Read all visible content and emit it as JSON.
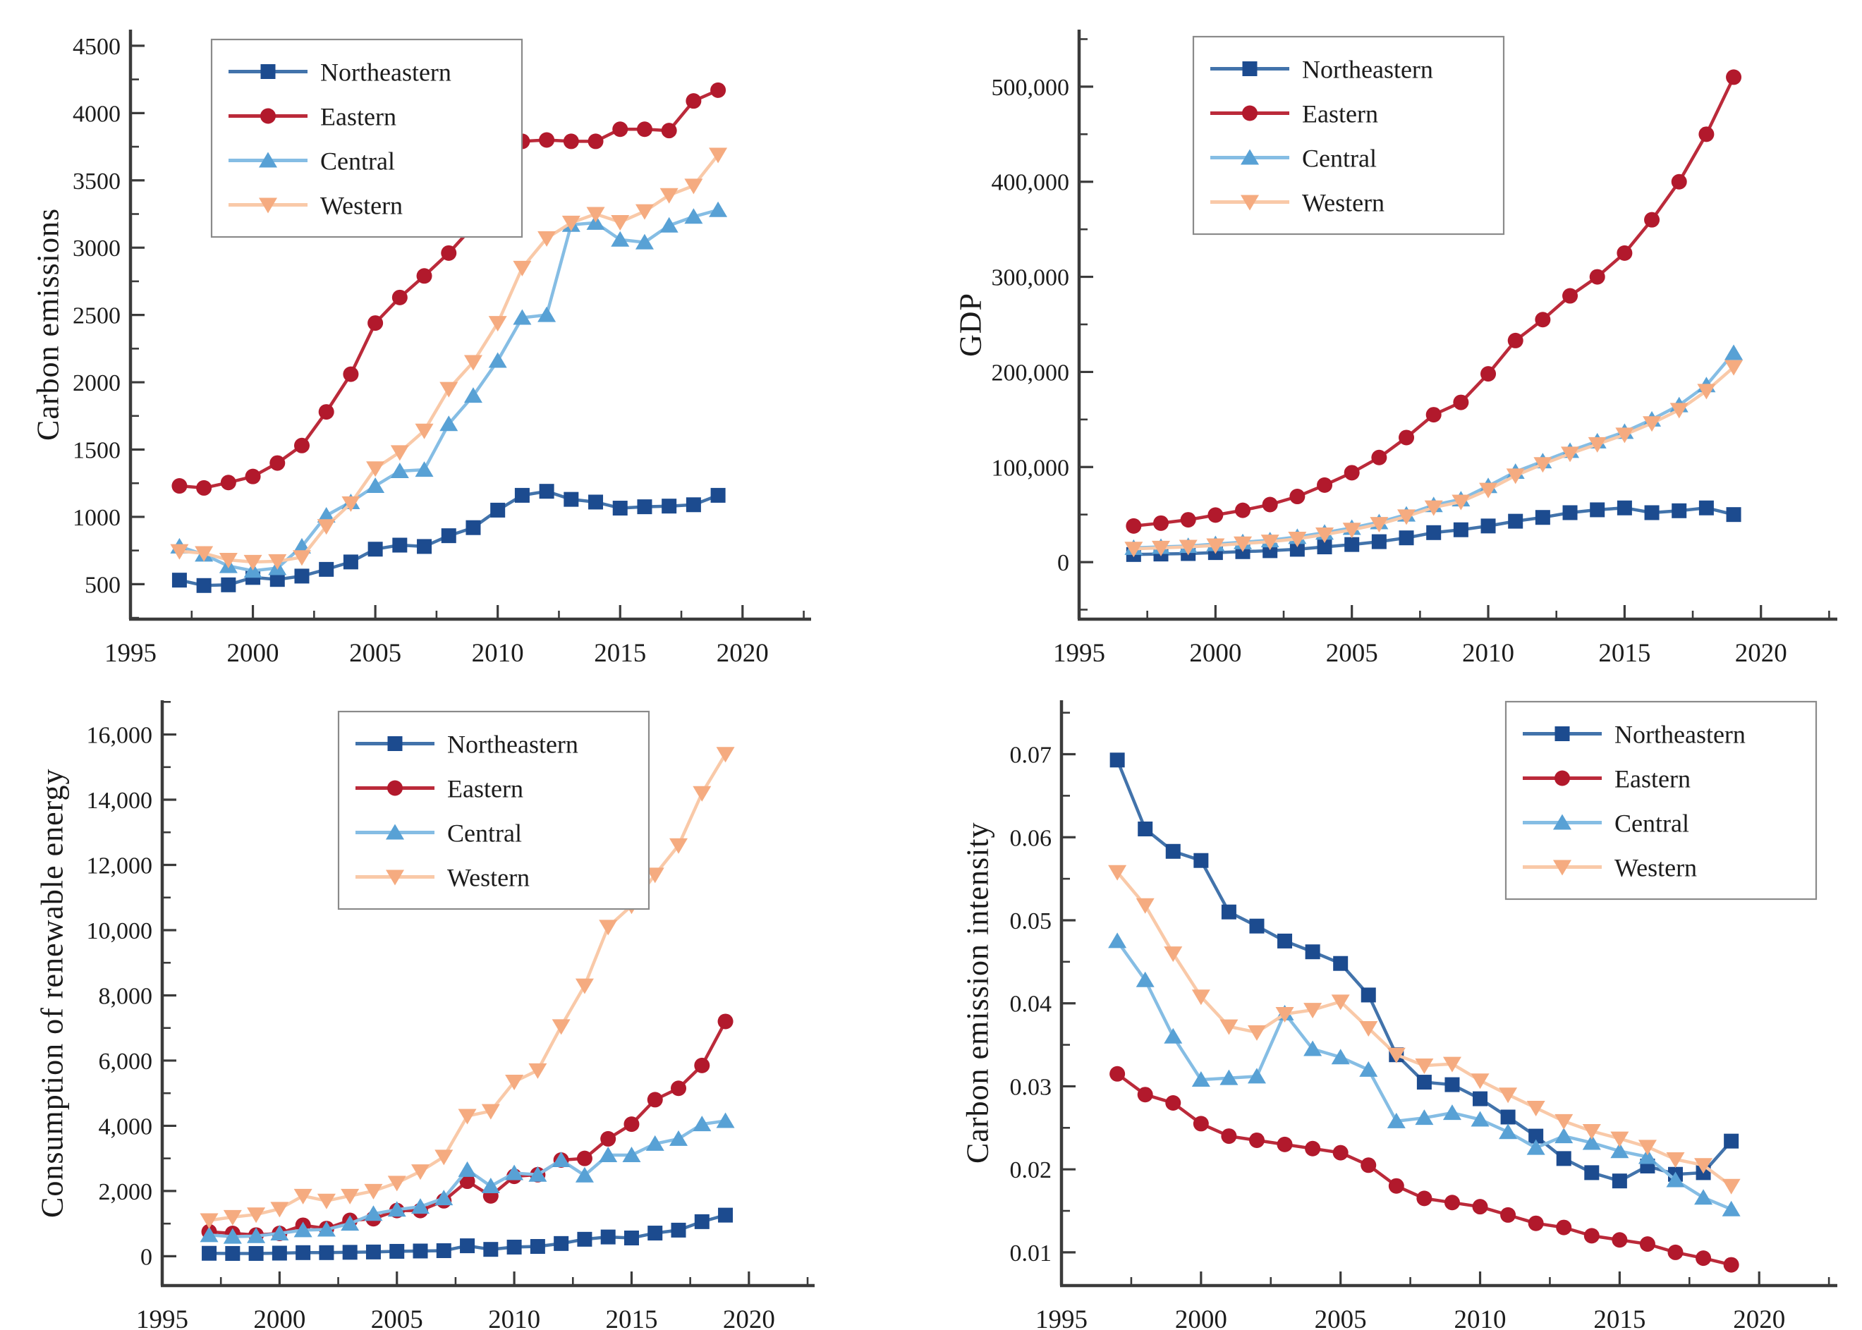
{
  "chart_data": [
    {
      "type": "line",
      "title": "",
      "xlabel": "",
      "ylabel": "Carbon emissions",
      "x_years": [
        1997,
        1998,
        1999,
        2000,
        2001,
        2002,
        2003,
        2004,
        2005,
        2006,
        2007,
        2008,
        2009,
        2010,
        2011,
        2012,
        2013,
        2014,
        2015,
        2016,
        2017,
        2018,
        2019
      ],
      "xlim": [
        1995,
        2022.8
      ],
      "ylim": [
        240,
        4620
      ],
      "x_major_ticks": [
        1995,
        2000,
        2005,
        2010,
        2015,
        2020
      ],
      "x_major_labels": [
        "1995",
        "2000",
        "2005",
        "2010",
        "2015",
        "2020"
      ],
      "x_minor_ticks": [
        1997.5,
        2002.5,
        2007.5,
        2012.5,
        2017.5,
        2022.5
      ],
      "y_major_ticks": [
        500,
        1000,
        1500,
        2000,
        2500,
        3000,
        3500,
        4000,
        4500
      ],
      "y_major_labels": [
        "500",
        "1000",
        "1500",
        "2000",
        "2500",
        "3000",
        "3500",
        "4000",
        "4500"
      ],
      "y_minor_ticks": [
        250,
        750,
        1250,
        1750,
        2250,
        2750,
        3250,
        3750,
        4250
      ],
      "grid": "off",
      "legend_position": "top-left",
      "series": [
        {
          "name": "Northeastern",
          "marker": "square",
          "line_color": "#4273ab",
          "marker_color": "#1c4b8f",
          "values": [
            530,
            490,
            495,
            550,
            535,
            560,
            610,
            665,
            760,
            790,
            780,
            860,
            920,
            1050,
            1160,
            1190,
            1130,
            1110,
            1065,
            1075,
            1080,
            1090,
            1160
          ]
        },
        {
          "name": "Eastern",
          "marker": "circle",
          "line_color": "#bb2a3a",
          "marker_color": "#b2192c",
          "values": [
            1230,
            1215,
            1255,
            1300,
            1400,
            1530,
            1780,
            2060,
            2440,
            2630,
            2790,
            2960,
            3160,
            3500,
            3790,
            3800,
            3790,
            3790,
            3880,
            3880,
            3870,
            4090,
            4170
          ]
        },
        {
          "name": "Central",
          "marker": "triangle-up",
          "line_color": "#85bde4",
          "marker_color": "#58a1d5",
          "values": [
            780,
            720,
            635,
            600,
            620,
            780,
            1010,
            1110,
            1230,
            1340,
            1350,
            1690,
            1900,
            2160,
            2480,
            2500,
            3170,
            3185,
            3060,
            3040,
            3165,
            3230,
            3280
          ]
        },
        {
          "name": "Western",
          "marker": "triangle-down",
          "line_color": "#f9c9a8",
          "marker_color": "#f5ab80",
          "values": [
            745,
            730,
            680,
            665,
            670,
            700,
            930,
            1100,
            1360,
            1480,
            1640,
            1950,
            2150,
            2440,
            2850,
            3070,
            3185,
            3250,
            3190,
            3270,
            3390,
            3460,
            3690
          ]
        }
      ]
    },
    {
      "type": "line",
      "title": "",
      "xlabel": "",
      "ylabel": "GDP",
      "x_years": [
        1997,
        1998,
        1999,
        2000,
        2001,
        2002,
        2003,
        2004,
        2005,
        2006,
        2007,
        2008,
        2009,
        2010,
        2011,
        2012,
        2013,
        2014,
        2015,
        2016,
        2017,
        2018,
        2019
      ],
      "xlim": [
        1995,
        2022.8
      ],
      "ylim": [
        -60000,
        560000
      ],
      "x_major_ticks": [
        1995,
        2000,
        2005,
        2010,
        2015,
        2020
      ],
      "x_major_labels": [
        "1995",
        "2000",
        "2005",
        "2010",
        "2015",
        "2020"
      ],
      "x_minor_ticks": [
        1997.5,
        2002.5,
        2007.5,
        2012.5,
        2017.5,
        2022.5
      ],
      "y_major_ticks": [
        0,
        100000,
        200000,
        300000,
        400000,
        500000
      ],
      "y_major_labels": [
        "0",
        "100,000",
        "200,000",
        "300,000",
        "400,000",
        "500,000"
      ],
      "y_minor_ticks": [
        -50000,
        50000,
        150000,
        250000,
        350000,
        450000,
        550000
      ],
      "grid": "off",
      "legend_position": "top-left",
      "series": [
        {
          "name": "Northeastern",
          "marker": "square",
          "line_color": "#4273ab",
          "marker_color": "#1c4b8f",
          "values": [
            8000,
            8500,
            9000,
            10000,
            11000,
            12000,
            13500,
            16000,
            18500,
            21500,
            25500,
            31000,
            34000,
            38000,
            43000,
            47000,
            52000,
            55000,
            57000,
            52000,
            54000,
            57000,
            50000
          ]
        },
        {
          "name": "Eastern",
          "marker": "circle",
          "line_color": "#bb2a3a",
          "marker_color": "#b2192c",
          "values": [
            38000,
            41000,
            44500,
            49500,
            54500,
            60500,
            69000,
            81000,
            94000,
            110000,
            131000,
            155000,
            168000,
            198000,
            233000,
            255000,
            280000,
            300000,
            325000,
            360000,
            400000,
            450000,
            510000
          ]
        },
        {
          "name": "Central",
          "marker": "triangle-up",
          "line_color": "#85bde4",
          "marker_color": "#58a1d5",
          "values": [
            15000,
            16000,
            17000,
            19000,
            21000,
            23000,
            26500,
            31000,
            36000,
            42000,
            50000,
            60000,
            66000,
            80000,
            95000,
            106000,
            117000,
            127000,
            137000,
            150000,
            165000,
            186000,
            220000
          ]
        },
        {
          "name": "Western",
          "marker": "triangle-down",
          "line_color": "#f9c9a8",
          "marker_color": "#f5ab80",
          "values": [
            14000,
            15000,
            16000,
            17500,
            19500,
            21500,
            24500,
            29000,
            34000,
            40000,
            48000,
            57500,
            63500,
            76000,
            91000,
            103000,
            114000,
            124000,
            134000,
            146000,
            160000,
            180000,
            205000
          ]
        }
      ]
    },
    {
      "type": "line",
      "title": "",
      "xlabel": "",
      "ylabel": "Consumption of renewable energy",
      "x_years": [
        1997,
        1998,
        1999,
        2000,
        2001,
        2002,
        2003,
        2004,
        2005,
        2006,
        2007,
        2008,
        2009,
        2010,
        2011,
        2012,
        2013,
        2014,
        2015,
        2016,
        2017,
        2018,
        2019
      ],
      "xlim": [
        1995,
        2022.8
      ],
      "ylim": [
        -900,
        17050
      ],
      "x_major_ticks": [
        1995,
        2000,
        2005,
        2010,
        2015,
        2020
      ],
      "x_major_labels": [
        "1995",
        "2000",
        "2005",
        "2010",
        "2015",
        "2020"
      ],
      "x_minor_ticks": [
        1997.5,
        2002.5,
        2007.5,
        2012.5,
        2017.5,
        2022.5
      ],
      "y_major_ticks": [
        0,
        2000,
        4000,
        6000,
        8000,
        10000,
        12000,
        14000,
        16000
      ],
      "y_major_labels": [
        "0",
        "2,000",
        "4,000",
        "6,000",
        "8,000",
        "10,000",
        "12,000",
        "14,000",
        "16,000"
      ],
      "y_minor_ticks": [
        1000,
        3000,
        5000,
        7000,
        9000,
        11000,
        13000,
        15000,
        17000
      ],
      "grid": "off",
      "legend_position": "top-left",
      "series": [
        {
          "name": "Northeastern",
          "marker": "square",
          "line_color": "#4273ab",
          "marker_color": "#1c4b8f",
          "values": [
            90,
            85,
            85,
            95,
            110,
            110,
            120,
            130,
            150,
            160,
            170,
            320,
            210,
            280,
            300,
            390,
            520,
            590,
            560,
            710,
            800,
            1060,
            1260
          ]
        },
        {
          "name": "Eastern",
          "marker": "circle",
          "line_color": "#bb2a3a",
          "marker_color": "#b2192c",
          "values": [
            750,
            700,
            650,
            700,
            950,
            850,
            1100,
            1150,
            1400,
            1400,
            1700,
            2300,
            1850,
            2450,
            2500,
            2950,
            3000,
            3600,
            4050,
            4800,
            5150,
            5850,
            7200
          ]
        },
        {
          "name": "Central",
          "marker": "triangle-up",
          "line_color": "#85bde4",
          "marker_color": "#58a1d5",
          "values": [
            650,
            600,
            620,
            700,
            800,
            820,
            1000,
            1300,
            1430,
            1520,
            1780,
            2650,
            2150,
            2550,
            2500,
            2950,
            2480,
            3100,
            3100,
            3450,
            3600,
            4050,
            4150
          ]
        },
        {
          "name": "Western",
          "marker": "triangle-down",
          "line_color": "#f9c9a8",
          "marker_color": "#f5ab80",
          "values": [
            1100,
            1200,
            1280,
            1450,
            1850,
            1700,
            1850,
            2000,
            2250,
            2600,
            3050,
            4300,
            4450,
            5350,
            5700,
            7050,
            8300,
            10100,
            10750,
            11700,
            12600,
            14200,
            15400
          ]
        }
      ]
    },
    {
      "type": "line",
      "title": "",
      "xlabel": "",
      "ylabel": "Carbon emission intensity",
      "x_years": [
        1997,
        1998,
        1999,
        2000,
        2001,
        2002,
        2003,
        2004,
        2005,
        2006,
        2007,
        2008,
        2009,
        2010,
        2011,
        2012,
        2013,
        2014,
        2015,
        2016,
        2017,
        2018,
        2019
      ],
      "xlim": [
        1995,
        2022.8
      ],
      "ylim": [
        0.006,
        0.0765
      ],
      "x_major_ticks": [
        1995,
        2000,
        2005,
        2010,
        2015,
        2020
      ],
      "x_major_labels": [
        "1995",
        "2000",
        "2005",
        "2010",
        "2015",
        "2020"
      ],
      "x_minor_ticks": [
        1997.5,
        2002.5,
        2007.5,
        2012.5,
        2017.5,
        2022.5
      ],
      "y_major_ticks": [
        0.01,
        0.02,
        0.03,
        0.04,
        0.05,
        0.06,
        0.07
      ],
      "y_major_labels": [
        "0.01",
        "0.02",
        "0.03",
        "0.04",
        "0.05",
        "0.06",
        "0.07"
      ],
      "y_minor_ticks": [
        0.015,
        0.025,
        0.035,
        0.045,
        0.055,
        0.065,
        0.075
      ],
      "grid": "off",
      "legend_position": "top-right",
      "series": [
        {
          "name": "Northeastern",
          "marker": "square",
          "line_color": "#4273ab",
          "marker_color": "#1c4b8f",
          "values": [
            0.0693,
            0.061,
            0.0583,
            0.0572,
            0.051,
            0.0493,
            0.0475,
            0.0462,
            0.0448,
            0.041,
            0.0338,
            0.0305,
            0.0302,
            0.0285,
            0.0263,
            0.024,
            0.0213,
            0.0196,
            0.0186,
            0.0204,
            0.0194,
            0.0196,
            0.0234
          ]
        },
        {
          "name": "Eastern",
          "marker": "circle",
          "line_color": "#bb2a3a",
          "marker_color": "#b2192c",
          "values": [
            0.0315,
            0.029,
            0.028,
            0.0255,
            0.024,
            0.0235,
            0.023,
            0.0225,
            0.022,
            0.0205,
            0.018,
            0.0165,
            0.016,
            0.0155,
            0.0145,
            0.0135,
            0.013,
            0.012,
            0.0115,
            0.011,
            0.01,
            0.0093,
            0.0085
          ]
        },
        {
          "name": "Central",
          "marker": "triangle-up",
          "line_color": "#85bde4",
          "marker_color": "#58a1d5",
          "values": [
            0.0475,
            0.0428,
            0.036,
            0.0308,
            0.031,
            0.0312,
            0.0388,
            0.0345,
            0.0335,
            0.032,
            0.0258,
            0.0262,
            0.0268,
            0.026,
            0.0245,
            0.0226,
            0.024,
            0.0232,
            0.0222,
            0.0215,
            0.0187,
            0.0166,
            0.0152
          ]
        },
        {
          "name": "Western",
          "marker": "triangle-down",
          "line_color": "#f9c9a8",
          "marker_color": "#f5ab80",
          "values": [
            0.0558,
            0.0518,
            0.046,
            0.0408,
            0.0372,
            0.0365,
            0.0387,
            0.0392,
            0.0402,
            0.037,
            0.0338,
            0.0325,
            0.0327,
            0.0307,
            0.029,
            0.0274,
            0.0258,
            0.0246,
            0.0237,
            0.0227,
            0.0212,
            0.0205,
            0.018
          ]
        }
      ]
    }
  ]
}
